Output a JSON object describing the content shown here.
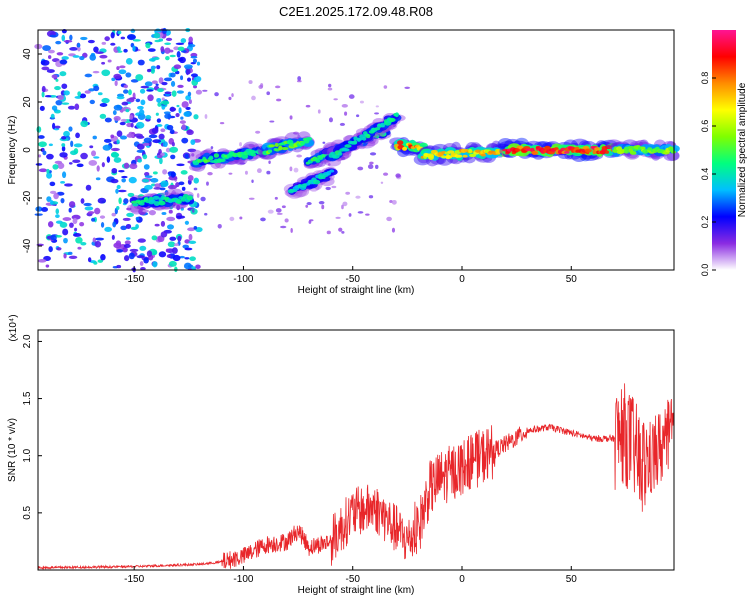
{
  "title": "C2E1.2025.172.09.48.R08",
  "chart_data": [
    {
      "type": "heatmap",
      "xlabel": "Height of straight line (km)",
      "ylabel": "Frequency (Hz)",
      "xlim": [
        -194,
        97
      ],
      "ylim": [
        -50,
        50
      ],
      "x_ticks": [
        -150,
        -100,
        -50,
        0,
        50
      ],
      "y_ticks": [
        -40,
        -20,
        0,
        20,
        40
      ],
      "colorbar": {
        "label": "Normalized spectral amplitude",
        "range": [
          0,
          1
        ],
        "ticks": [
          "0.0",
          "0.2",
          "0.4",
          "0.6",
          "0.8"
        ],
        "colors": [
          "#ffffff",
          "#8a2be2",
          "#0000ff",
          "#00bfff",
          "#00ff7f",
          "#7fff00",
          "#ffff00",
          "#ff8c00",
          "#ff0000",
          "#ff1493"
        ]
      },
      "features": [
        {
          "segment": [
            -150,
            -22,
            -125,
            -20
          ],
          "amplitude": 0.45
        },
        {
          "segment": [
            -122,
            -5,
            -90,
            0
          ],
          "amplitude": 0.5
        },
        {
          "segment": [
            -90,
            0,
            -70,
            4
          ],
          "amplitude": 0.55
        },
        {
          "segment": [
            -70,
            -5,
            -35,
            8
          ],
          "amplitude": 0.5
        },
        {
          "segment": [
            -60,
            -3,
            -30,
            14
          ],
          "amplitude": 0.45
        },
        {
          "segment": [
            -78,
            -17,
            -60,
            -10
          ],
          "amplitude": 0.4
        },
        {
          "segment": [
            -30,
            2,
            -18,
            1
          ],
          "amplitude": 0.85
        },
        {
          "segment": [
            -18,
            -2,
            20,
            -1
          ],
          "amplitude": 0.75
        },
        {
          "segment": [
            20,
            0,
            70,
            0
          ],
          "amplitude": 0.95
        },
        {
          "segment": [
            70,
            0,
            97,
            0
          ],
          "amplitude": 0.6
        }
      ]
    },
    {
      "type": "line",
      "xlabel": "Height of straight line (km)",
      "ylabel": "SNR (10 * v/v)",
      "y_multiplier": "(x10⁴)",
      "xlim": [
        -194,
        97
      ],
      "ylim": [
        0,
        2.1
      ],
      "x_ticks": [
        -150,
        -100,
        -50,
        0,
        50
      ],
      "y_ticks": [
        "0.5",
        "1.0",
        "1.5",
        "2.0"
      ],
      "color": "#e8262a",
      "envelope_x": [
        -194,
        -150,
        -120,
        -110,
        -100,
        -90,
        -80,
        -75,
        -70,
        -60,
        -50,
        -40,
        -30,
        -25,
        -20,
        -15,
        -10,
        -5,
        0,
        10,
        20,
        30,
        40,
        50,
        60,
        70,
        74,
        78,
        82,
        88,
        92,
        97
      ],
      "envelope_y": [
        0.02,
        0.03,
        0.05,
        0.07,
        0.12,
        0.22,
        0.25,
        0.35,
        0.2,
        0.25,
        0.5,
        0.55,
        0.35,
        0.25,
        0.35,
        0.7,
        0.8,
        0.85,
        0.9,
        1.0,
        1.1,
        1.22,
        1.25,
        1.2,
        1.15,
        1.15,
        1.2,
        1.1,
        0.9,
        1.0,
        1.1,
        1.2
      ]
    }
  ]
}
